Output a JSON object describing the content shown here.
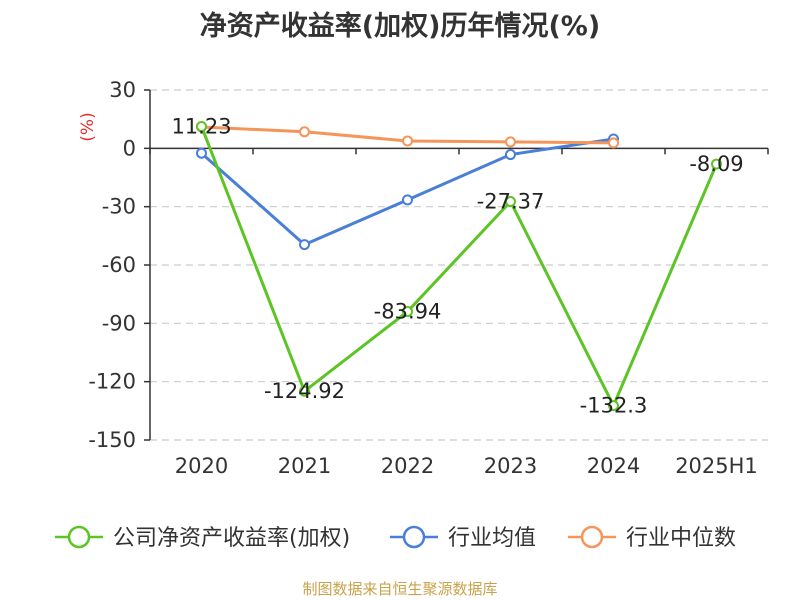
{
  "chart_data": {
    "type": "line",
    "title": "净资产收益率(加权)历年情况(%)",
    "ylabel": "(%)",
    "categories": [
      "2020",
      "2021",
      "2022",
      "2023",
      "2024",
      "2025H1"
    ],
    "ylim": [
      -150,
      30
    ],
    "yticks": [
      30,
      0,
      -30,
      -60,
      -90,
      -120,
      -150
    ],
    "grid": true,
    "legend_position": "bottom",
    "series": [
      {
        "name": "公司净资产收益率(加权)",
        "color": "#5cc424",
        "values": [
          11.23,
          -124.92,
          -83.94,
          -27.37,
          -132.3,
          -8.09
        ],
        "labels": [
          "11.23",
          "-124.92",
          "-83.94",
          "-27.37",
          "-132.3",
          "-8.09"
        ]
      },
      {
        "name": "行业均值",
        "color": "#4a7fd8",
        "values": [
          -2.5,
          -49.5,
          -26.5,
          -3.2,
          4.8,
          null
        ]
      },
      {
        "name": "行业中位数",
        "color": "#f5955a",
        "values": [
          11.0,
          8.5,
          3.8,
          3.3,
          2.8,
          null
        ]
      }
    ]
  },
  "footer": {
    "source": "制图数据来自恒生聚源数据库"
  }
}
